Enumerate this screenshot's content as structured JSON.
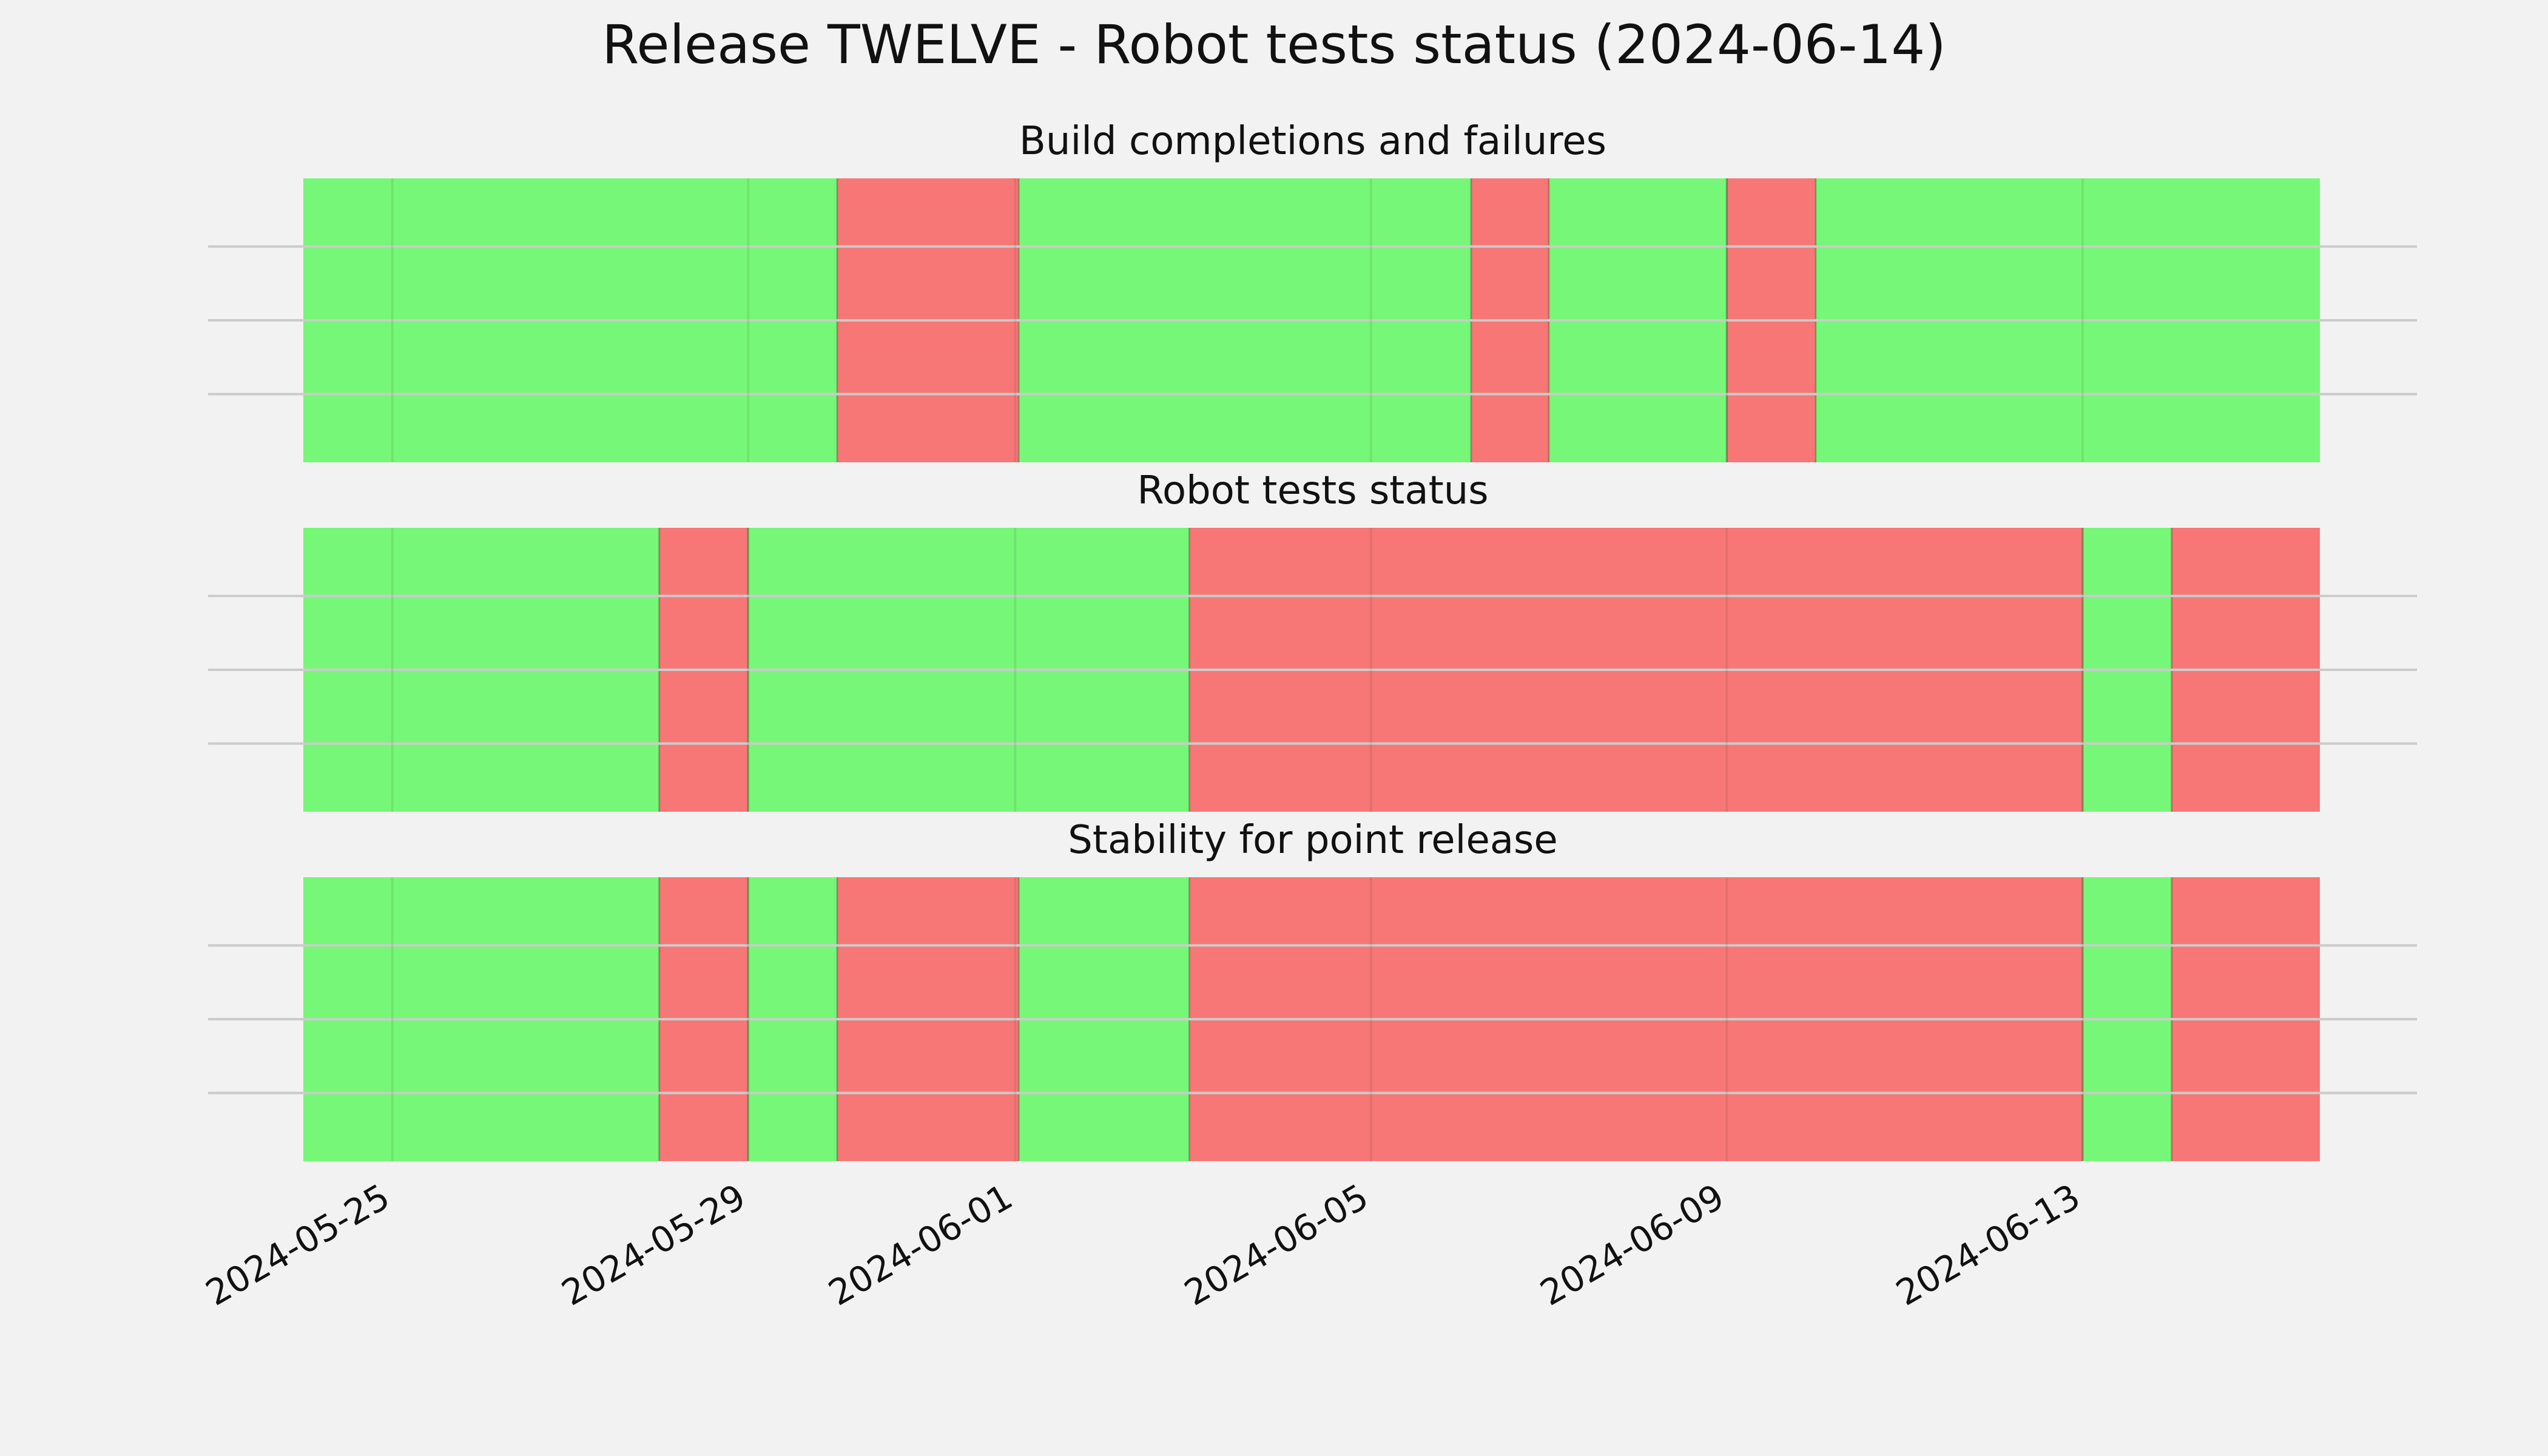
{
  "chart_data": {
    "type": "timeline",
    "title": "Release TWELVE - Robot tests status (2024-06-14)",
    "x_range": [
      "2024-05-24",
      "2024-06-15T16:00"
    ],
    "ticks": [
      "2024-05-25",
      "2024-05-29",
      "2024-06-01",
      "2024-06-05",
      "2024-06-09",
      "2024-06-13"
    ],
    "colors": {
      "pass": "#77f777",
      "fail": "#f77777",
      "background": "#f2f2f2",
      "grid": "#cbcbcb"
    },
    "grid": true,
    "panels": [
      {
        "title": "Build completions and failures",
        "segments": [
          {
            "start": "2024-05-24",
            "end": "2024-05-30",
            "status": "pass"
          },
          {
            "start": "2024-05-30",
            "end": "2024-06-01T01:00",
            "status": "fail"
          },
          {
            "start": "2024-06-01T01:00",
            "end": "2024-06-06T03:00",
            "status": "pass"
          },
          {
            "start": "2024-06-06T03:00",
            "end": "2024-06-07",
            "status": "fail"
          },
          {
            "start": "2024-06-07",
            "end": "2024-06-09",
            "status": "pass"
          },
          {
            "start": "2024-06-09",
            "end": "2024-06-10",
            "status": "fail"
          },
          {
            "start": "2024-06-10",
            "end": "2024-06-15T16:00",
            "status": "pass"
          }
        ]
      },
      {
        "title": "Robot tests status",
        "segments": [
          {
            "start": "2024-05-24",
            "end": "2024-05-28",
            "status": "pass"
          },
          {
            "start": "2024-05-28",
            "end": "2024-05-29",
            "status": "fail"
          },
          {
            "start": "2024-05-29",
            "end": "2024-06-02T23:00",
            "status": "pass"
          },
          {
            "start": "2024-06-02T23:00",
            "end": "2024-06-13",
            "status": "fail"
          },
          {
            "start": "2024-06-13",
            "end": "2024-06-14",
            "status": "pass"
          },
          {
            "start": "2024-06-14",
            "end": "2024-06-15T16:00",
            "status": "fail"
          }
        ]
      },
      {
        "title": "Stability for point release",
        "segments": [
          {
            "start": "2024-05-24",
            "end": "2024-05-28",
            "status": "pass"
          },
          {
            "start": "2024-05-28",
            "end": "2024-05-29",
            "status": "fail"
          },
          {
            "start": "2024-05-29",
            "end": "2024-05-30",
            "status": "pass"
          },
          {
            "start": "2024-05-30",
            "end": "2024-06-01T01:00",
            "status": "fail"
          },
          {
            "start": "2024-06-01T01:00",
            "end": "2024-06-02T23:00",
            "status": "pass"
          },
          {
            "start": "2024-06-02T23:00",
            "end": "2024-06-13",
            "status": "fail"
          },
          {
            "start": "2024-06-13",
            "end": "2024-06-14",
            "status": "pass"
          },
          {
            "start": "2024-06-14",
            "end": "2024-06-15T16:00",
            "status": "fail"
          }
        ]
      }
    ]
  }
}
